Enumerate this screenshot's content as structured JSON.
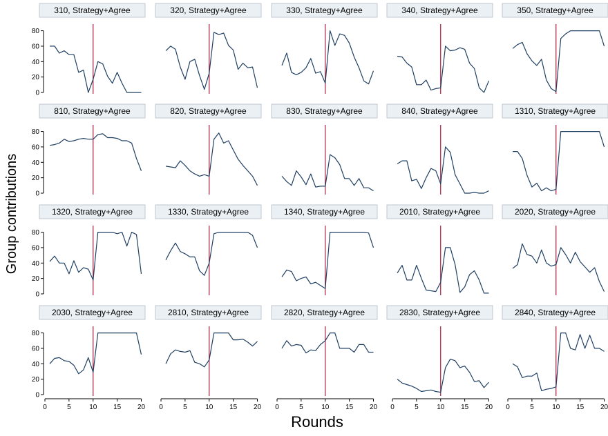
{
  "chart_data": {
    "type": "line",
    "xlabel": "Rounds",
    "ylabel": "Group contributions",
    "x_ticks": [
      0,
      5,
      10,
      15,
      20
    ],
    "y_ticks": [
      0,
      20,
      40,
      60,
      80
    ],
    "xlim": [
      0,
      20.5
    ],
    "ylim": [
      0,
      85
    ],
    "vline_x": 10,
    "colors": {
      "series": "#1f3f62",
      "vline": "#a6193b",
      "header": "#eaf0f4",
      "frame": "#bfc7cf"
    },
    "rounds": [
      1,
      2,
      3,
      4,
      5,
      6,
      7,
      8,
      9,
      10,
      11,
      12,
      13,
      14,
      15,
      16,
      17,
      18,
      19,
      20
    ],
    "panels": [
      {
        "title": "310, Strategy+Agree",
        "values": [
          60,
          60,
          51,
          54,
          49,
          49,
          26,
          29,
          0,
          17,
          40,
          37,
          21,
          12,
          26,
          12,
          0,
          0,
          0,
          0
        ]
      },
      {
        "title": "320, Strategy+Agree",
        "values": [
          54,
          60,
          56,
          33,
          17,
          40,
          43,
          22,
          4,
          25,
          78,
          75,
          77,
          61,
          55,
          30,
          38,
          32,
          33,
          6
        ]
      },
      {
        "title": "330, Strategy+Agree",
        "values": [
          35,
          51,
          26,
          23,
          26,
          32,
          44,
          25,
          27,
          12,
          80,
          61,
          76,
          74,
          64,
          46,
          32,
          15,
          11,
          28
        ]
      },
      {
        "title": "340, Strategy+Agree",
        "values": [
          47,
          46,
          38,
          33,
          10,
          10,
          16,
          3,
          5,
          6,
          60,
          54,
          55,
          58,
          56,
          38,
          31,
          6,
          0,
          15
        ]
      },
      {
        "title": "350, Strategy+Agree",
        "values": [
          57,
          62,
          65,
          50,
          41,
          35,
          43,
          16,
          5,
          1,
          70,
          76,
          80,
          80,
          80,
          80,
          80,
          80,
          80,
          60
        ]
      },
      {
        "title": "810, Strategy+Agree",
        "values": [
          62,
          63,
          65,
          70,
          67,
          68,
          70,
          71,
          70,
          70,
          76,
          77,
          72,
          72,
          71,
          68,
          68,
          65,
          45,
          29
        ]
      },
      {
        "title": "820, Strategy+Agree",
        "values": [
          35,
          34,
          33,
          42,
          36,
          29,
          25,
          22,
          24,
          22,
          70,
          78,
          65,
          68,
          56,
          44,
          36,
          29,
          22,
          10
        ]
      },
      {
        "title": "830, Strategy+Agree",
        "values": [
          22,
          15,
          10,
          29,
          21,
          11,
          25,
          8,
          9,
          9,
          50,
          46,
          37,
          19,
          19,
          10,
          19,
          7,
          7,
          3
        ]
      },
      {
        "title": "840, Strategy+Agree",
        "values": [
          38,
          42,
          42,
          16,
          18,
          6,
          20,
          32,
          29,
          12,
          60,
          53,
          24,
          12,
          0,
          0,
          1,
          0,
          0,
          3
        ]
      },
      {
        "title": "1310, Strategy+Agree",
        "values": [
          54,
          54,
          45,
          23,
          8,
          13,
          3,
          7,
          3,
          5,
          80,
          80,
          80,
          80,
          80,
          80,
          80,
          80,
          80,
          60
        ]
      },
      {
        "title": "1320, Strategy+Agree",
        "values": [
          42,
          49,
          40,
          40,
          26,
          43,
          28,
          34,
          32,
          18,
          80,
          80,
          80,
          80,
          78,
          80,
          62,
          80,
          77,
          26
        ]
      },
      {
        "title": "1330, Strategy+Agree",
        "values": [
          44,
          56,
          66,
          55,
          52,
          48,
          48,
          30,
          24,
          40,
          78,
          80,
          80,
          80,
          80,
          80,
          80,
          80,
          76,
          60
        ]
      },
      {
        "title": "1340, Strategy+Agree",
        "values": [
          22,
          31,
          29,
          17,
          20,
          22,
          13,
          15,
          11,
          7,
          80,
          80,
          80,
          80,
          80,
          80,
          80,
          80,
          79,
          60
        ]
      },
      {
        "title": "2010, Strategy+Agree",
        "values": [
          27,
          37,
          18,
          18,
          37,
          20,
          5,
          4,
          3,
          15,
          60,
          60,
          38,
          2,
          9,
          25,
          30,
          18,
          1,
          1
        ]
      },
      {
        "title": "2020, Strategy+Agree",
        "values": [
          33,
          38,
          65,
          51,
          49,
          40,
          57,
          40,
          36,
          38,
          60,
          51,
          40,
          54,
          42,
          35,
          28,
          34,
          16,
          3
        ]
      },
      {
        "title": "2030, Strategy+Agree",
        "values": [
          40,
          47,
          48,
          44,
          43,
          38,
          27,
          32,
          48,
          29,
          80,
          80,
          80,
          80,
          80,
          80,
          80,
          80,
          80,
          52
        ]
      },
      {
        "title": "2810, Strategy+Agree",
        "values": [
          40,
          53,
          58,
          56,
          55,
          57,
          42,
          40,
          36,
          45,
          80,
          80,
          80,
          80,
          71,
          71,
          72,
          68,
          63,
          69
        ]
      },
      {
        "title": "2820, Strategy+Agree",
        "values": [
          60,
          70,
          63,
          65,
          64,
          54,
          58,
          57,
          65,
          70,
          80,
          80,
          60,
          60,
          60,
          55,
          65,
          65,
          55,
          55
        ]
      },
      {
        "title": "2830, Strategy+Agree",
        "values": [
          20,
          15,
          13,
          11,
          8,
          4,
          5,
          6,
          4,
          3,
          35,
          46,
          44,
          35,
          37,
          29,
          17,
          18,
          9,
          16
        ]
      },
      {
        "title": "2840, Strategy+Agree",
        "values": [
          40,
          36,
          22,
          24,
          24,
          28,
          5,
          7,
          8,
          10,
          80,
          80,
          60,
          58,
          78,
          60,
          77,
          60,
          60,
          56
        ]
      }
    ]
  }
}
